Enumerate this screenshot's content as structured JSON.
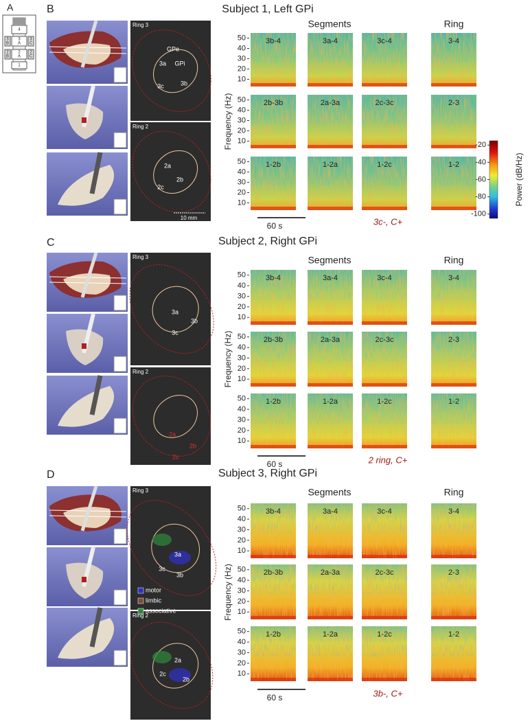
{
  "panel_a": {
    "label": "A",
    "contacts": [
      "4",
      "3",
      "A",
      "3",
      "B",
      "3",
      "C",
      "2",
      "A",
      "2",
      "B",
      "2",
      "C",
      "1"
    ]
  },
  "panels": [
    {
      "label": "B",
      "title": "Subject 1, Left GPi",
      "ring3": {
        "title": "Ring 3",
        "labels": [
          "GPe",
          "GPi",
          "3a",
          "3b",
          "3c"
        ]
      },
      "ring2": {
        "title": "Ring 2",
        "labels": [
          "2a",
          "2b",
          "2c"
        ],
        "scale": "10 mm"
      },
      "segments_header": "Segments",
      "ring_header": "Ring",
      "y_label": "Frequency (Hz)",
      "ylim": [
        3,
        55
      ],
      "yticks": [
        10,
        20,
        30,
        40,
        50
      ],
      "rows": [
        [
          "3b-4",
          "3a-4",
          "3c-4",
          "3-4"
        ],
        [
          "2b-3b",
          "2a-3a",
          "2c-3c",
          "2-3"
        ],
        [
          "1-2b",
          "1-2a",
          "1-2c",
          "1-2"
        ]
      ],
      "time_bar": "60 s",
      "annotation": "3c-, C+"
    },
    {
      "label": "C",
      "title": "Subject 2, Right GPi",
      "ring3": {
        "title": "Ring 3",
        "labels": [
          "3a",
          "3b",
          "3c"
        ]
      },
      "ring2": {
        "title": "Ring 2",
        "labels": [
          "2a",
          "2b",
          "2c"
        ]
      },
      "segments_header": "Segments",
      "ring_header": "Ring",
      "y_label": "Frequency (Hz)",
      "ylim": [
        3,
        55
      ],
      "yticks": [
        10,
        20,
        30,
        40,
        50
      ],
      "rows": [
        [
          "3b-4",
          "3a-4",
          "3c-4",
          "3-4"
        ],
        [
          "2b-3b",
          "2a-3a",
          "2c-3c",
          "2-3"
        ],
        [
          "1-2b",
          "1-2a",
          "1-2c",
          "1-2"
        ]
      ],
      "time_bar": "60 s",
      "annotation": "2 ring, C+"
    },
    {
      "label": "D",
      "title": "Subject 3, Right GPi",
      "ring3": {
        "title": "Ring 3",
        "labels": [
          "3a",
          "3b",
          "3c"
        ],
        "legend": [
          "motor",
          "limbic",
          "associative"
        ]
      },
      "ring2": {
        "title": "Ring 2",
        "labels": [
          "2a",
          "2b",
          "2c"
        ]
      },
      "segments_header": "Segments",
      "ring_header": "Ring",
      "y_label": "Frequency (Hz)",
      "ylim": [
        3,
        55
      ],
      "yticks": [
        10,
        20,
        30,
        40,
        50
      ],
      "rows": [
        [
          "3b-4",
          "3a-4",
          "3c-4",
          "3-4"
        ],
        [
          "2b-3b",
          "2a-3a",
          "2c-3c",
          "2-3"
        ],
        [
          "1-2b",
          "1-2a",
          "1-2c",
          "1-2"
        ]
      ],
      "time_bar": "60 s",
      "annotation": "3b-, C+"
    }
  ],
  "colorbar": {
    "label": "Power (dB/Hz)",
    "clim": [
      -105,
      -15
    ],
    "ticks": [
      -20,
      -40,
      -60,
      -80,
      -100
    ]
  }
}
